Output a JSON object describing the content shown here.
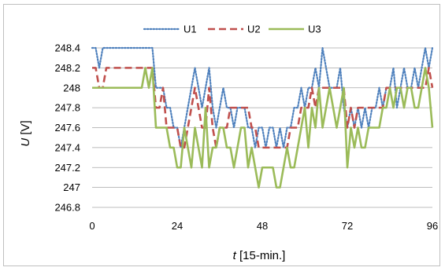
{
  "chart_data": {
    "type": "line",
    "title": "",
    "xlabel_var": "t",
    "xlabel_unit": " [15-min.]",
    "ylabel_var": "U",
    "ylabel_unit": " [V]",
    "xlim": [
      0,
      96
    ],
    "ylim": [
      246.8,
      248.4
    ],
    "x_ticks": [
      0,
      24,
      48,
      72,
      96
    ],
    "y_ticks": [
      246.8,
      247,
      247.2,
      247.4,
      247.6,
      247.8,
      248,
      248.2,
      248.4
    ],
    "y_tick_labels": [
      "246.8",
      "247",
      "247.2",
      "247.4",
      "247.6",
      "247.8",
      "248",
      "248.2",
      "248.4"
    ],
    "grid": "horizontal",
    "legend": "top-center",
    "x": [
      0,
      1,
      2,
      3,
      4,
      5,
      6,
      7,
      8,
      9,
      10,
      11,
      12,
      13,
      14,
      15,
      16,
      17,
      18,
      19,
      20,
      21,
      22,
      23,
      24,
      25,
      26,
      27,
      28,
      29,
      30,
      31,
      32,
      33,
      34,
      35,
      36,
      37,
      38,
      39,
      40,
      41,
      42,
      43,
      44,
      45,
      46,
      47,
      48,
      49,
      50,
      51,
      52,
      53,
      54,
      55,
      56,
      57,
      58,
      59,
      60,
      61,
      62,
      63,
      64,
      65,
      66,
      67,
      68,
      69,
      70,
      71,
      72,
      73,
      74,
      75,
      76,
      77,
      78,
      79,
      80,
      81,
      82,
      83,
      84,
      85,
      86,
      87,
      88,
      89,
      90,
      91,
      92,
      93,
      94,
      95,
      96
    ],
    "series": [
      {
        "name": "U1",
        "color": "#4f81bd",
        "dash": "dotted",
        "values": [
          248.4,
          248.4,
          248.2,
          248.4,
          248.4,
          248.4,
          248.4,
          248.4,
          248.4,
          248.4,
          248.4,
          248.4,
          248.4,
          248.4,
          248.4,
          248.4,
          248.4,
          248.4,
          248.0,
          248.0,
          248.0,
          247.8,
          247.8,
          247.6,
          247.6,
          247.4,
          247.6,
          247.8,
          248.0,
          248.2,
          248.0,
          247.8,
          248.0,
          248.2,
          247.8,
          247.6,
          247.8,
          248.0,
          247.8,
          247.8,
          247.6,
          247.8,
          247.8,
          247.8,
          247.6,
          247.6,
          247.4,
          247.6,
          247.6,
          247.4,
          247.6,
          247.6,
          247.4,
          247.6,
          247.4,
          247.6,
          247.6,
          247.8,
          247.8,
          248.0,
          247.8,
          248.0,
          248.0,
          248.2,
          248.0,
          248.4,
          248.2,
          248.0,
          248.0,
          248.0,
          248.2,
          247.8,
          247.6,
          247.8,
          247.6,
          247.8,
          247.6,
          247.8,
          247.6,
          247.8,
          247.8,
          248.0,
          247.8,
          248.0,
          248.0,
          248.2,
          247.8,
          248.0,
          248.2,
          248.0,
          248.0,
          248.2,
          248.0,
          248.2,
          248.4,
          248.2,
          248.4
        ]
      },
      {
        "name": "U2",
        "color": "#c0504d",
        "dash": "dashed",
        "values": [
          248.2,
          248.2,
          248.0,
          248.0,
          248.2,
          248.2,
          248.2,
          248.2,
          248.2,
          248.2,
          248.2,
          248.2,
          248.2,
          248.2,
          248.2,
          248.2,
          248.2,
          248.2,
          247.8,
          247.8,
          248.0,
          247.6,
          247.6,
          247.6,
          247.6,
          247.4,
          247.4,
          247.6,
          247.8,
          248.0,
          247.8,
          247.6,
          247.6,
          248.0,
          247.6,
          247.4,
          247.6,
          247.6,
          247.6,
          247.8,
          247.8,
          247.8,
          247.8,
          247.8,
          247.8,
          247.6,
          247.6,
          247.4,
          247.4,
          247.4,
          247.4,
          247.4,
          247.4,
          247.4,
          247.4,
          247.4,
          247.6,
          247.6,
          247.6,
          247.8,
          247.8,
          247.8,
          248.0,
          247.8,
          248.0,
          248.0,
          248.0,
          248.0,
          248.0,
          248.0,
          248.0,
          248.0,
          247.6,
          247.8,
          247.6,
          247.8,
          247.8,
          247.8,
          247.8,
          247.8,
          247.8,
          247.8,
          247.8,
          248.0,
          248.0,
          248.0,
          248.0,
          248.0,
          248.0,
          248.0,
          248.0,
          248.0,
          248.0,
          248.0,
          248.0,
          248.2,
          248.0
        ]
      },
      {
        "name": "U3",
        "color": "#9bbb59",
        "dash": "solid",
        "values": [
          248.0,
          248.0,
          248.0,
          248.0,
          248.0,
          248.0,
          248.0,
          248.0,
          248.0,
          248.0,
          248.0,
          248.0,
          248.0,
          248.0,
          248.0,
          248.2,
          248.0,
          248.2,
          247.6,
          247.6,
          247.6,
          247.6,
          247.4,
          247.4,
          247.2,
          247.2,
          247.6,
          247.4,
          247.2,
          247.6,
          247.4,
          247.2,
          247.8,
          247.2,
          247.4,
          247.4,
          247.6,
          247.6,
          247.4,
          247.4,
          247.2,
          247.4,
          247.6,
          247.6,
          247.2,
          247.4,
          247.2,
          247.0,
          247.2,
          247.2,
          247.2,
          247.2,
          247.0,
          247.0,
          247.2,
          247.4,
          247.2,
          247.2,
          247.4,
          247.6,
          247.8,
          247.4,
          247.8,
          247.6,
          248.0,
          247.6,
          247.8,
          248.0,
          247.8,
          247.6,
          247.8,
          248.0,
          247.2,
          247.6,
          247.4,
          247.6,
          247.4,
          247.4,
          247.6,
          247.6,
          247.6,
          247.6,
          247.8,
          247.8,
          248.0,
          247.8,
          248.0,
          248.0,
          247.8,
          248.0,
          248.0,
          247.8,
          247.8,
          248.0,
          248.2,
          248.0,
          247.6
        ]
      }
    ]
  }
}
